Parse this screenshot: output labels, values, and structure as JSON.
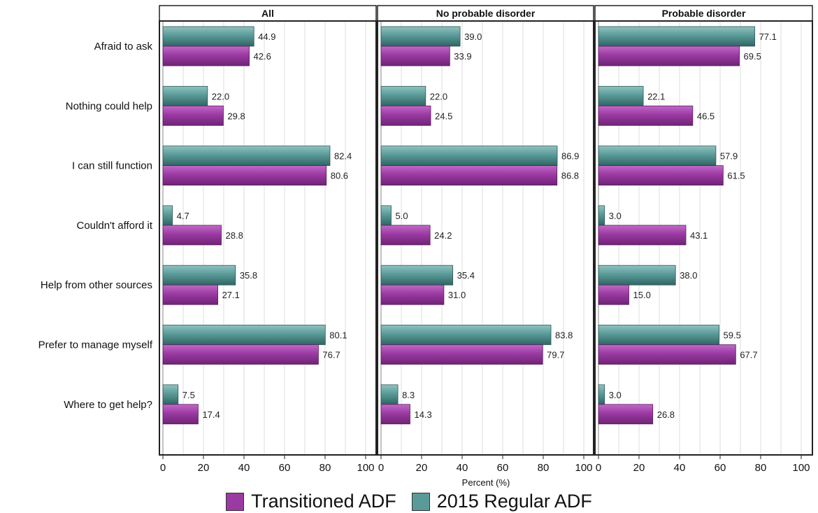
{
  "chart_data": {
    "type": "bar",
    "orientation": "horizontal",
    "categories": [
      "Afraid to ask",
      "Nothing could help",
      "I can still function",
      "Couldn't afford it",
      "Help from other sources",
      "Prefer to manage myself",
      "Where to get help?"
    ],
    "xlabel": "Percent (%)",
    "xlim": [
      0,
      100
    ],
    "xticks": [
      "0",
      "20",
      "40",
      "60",
      "80",
      "100"
    ],
    "grid": "vertical",
    "legend": "bottom",
    "series_colors": {
      "transitioned": "#9b3aa3",
      "regular": "#5a9a98"
    },
    "panels": [
      {
        "title": "All",
        "series": [
          {
            "name": "Transitioned ADF",
            "values": [
              42.6,
              29.8,
              80.6,
              28.8,
              27.1,
              76.7,
              17.4
            ],
            "labels": [
              "42.6",
              "29.8",
              "80.6",
              "28.8",
              "27.1",
              "76.7",
              "17.4"
            ]
          },
          {
            "name": "2015 Regular ADF",
            "values": [
              44.9,
              22.0,
              82.4,
              4.7,
              35.8,
              80.1,
              7.5
            ],
            "labels": [
              "44.9",
              "22.0",
              "82.4",
              "4.7",
              "35.8",
              "80.1",
              "7.5"
            ]
          }
        ]
      },
      {
        "title": "No probable disorder",
        "series": [
          {
            "name": "Transitioned ADF",
            "values": [
              33.9,
              24.5,
              86.8,
              24.2,
              31.0,
              79.7,
              14.3
            ],
            "labels": [
              "33.9",
              "24.5",
              "86.8",
              "24.2",
              "31.0",
              "79.7",
              "14.3"
            ]
          },
          {
            "name": "2015 Regular ADF",
            "values": [
              39.0,
              22.0,
              86.9,
              5.0,
              35.4,
              83.8,
              8.3
            ],
            "labels": [
              "39.0",
              "22.0",
              "86.9",
              "5.0",
              "35.4",
              "83.8",
              "8.3"
            ]
          }
        ]
      },
      {
        "title": "Probable disorder",
        "series": [
          {
            "name": "Transitioned ADF",
            "values": [
              69.5,
              46.5,
              61.5,
              43.1,
              15.0,
              67.7,
              26.8
            ],
            "labels": [
              "69.5",
              "46.5",
              "61.5",
              "43.1",
              "15.0",
              "67.7",
              "26.8"
            ]
          },
          {
            "name": "2015 Regular ADF",
            "values": [
              77.1,
              22.1,
              57.9,
              3.0,
              38.0,
              59.5,
              3.0
            ],
            "labels": [
              "77.1",
              "22.1",
              "57.9",
              "3.0",
              "38.0",
              "59.5",
              "3.0"
            ]
          }
        ]
      }
    ]
  },
  "legend_items": [
    {
      "label": "Transitioned ADF",
      "color": "#9b3aa3"
    },
    {
      "label": "2015 Regular ADF",
      "color": "#5a9a98"
    }
  ]
}
